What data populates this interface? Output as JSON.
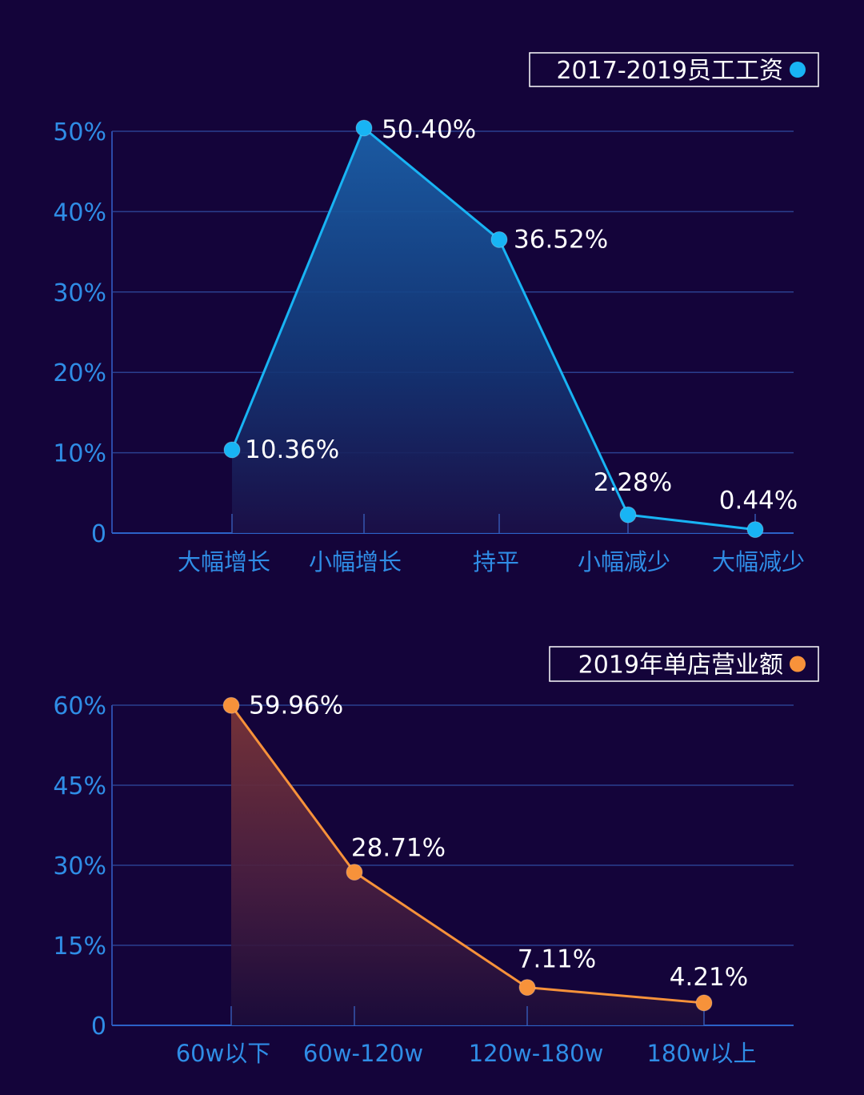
{
  "chart_data": [
    {
      "type": "area",
      "title": "",
      "legend": {
        "label": "2017-2019员工工资",
        "placement": "top-right"
      },
      "color": "#18b4f4",
      "categories": [
        "大幅增长",
        "小幅增长",
        "持平",
        "小幅减少",
        "大幅减少"
      ],
      "values": [
        10.36,
        50.4,
        36.52,
        2.28,
        0.44
      ],
      "data_labels": [
        "10.36%",
        "50.40%",
        "36.52%",
        "2.28%",
        "0.44%"
      ],
      "y_ticks": [
        0,
        10,
        20,
        30,
        40,
        50
      ],
      "y_tick_labels": [
        "0",
        "10%",
        "20%",
        "30%",
        "40%",
        "50%"
      ],
      "ylim": [
        0,
        50
      ],
      "grid": true,
      "xlabel": "",
      "ylabel": ""
    },
    {
      "type": "area",
      "title": "",
      "legend": {
        "label": "2019年单店营业额",
        "placement": "top-right"
      },
      "color": "#f7923a",
      "categories": [
        "60w以下",
        "60w-120w",
        "120w-180w",
        "180w以上"
      ],
      "values": [
        59.96,
        28.71,
        7.11,
        4.21
      ],
      "data_labels": [
        "59.96%",
        "28.71%",
        "7.11%",
        "4.21%"
      ],
      "y_ticks": [
        0,
        15,
        30,
        45,
        60
      ],
      "y_tick_labels": [
        "0",
        "15%",
        "30%",
        "45%",
        "60%"
      ],
      "ylim": [
        0,
        60
      ],
      "grid": true,
      "xlabel": "",
      "ylabel": ""
    }
  ]
}
